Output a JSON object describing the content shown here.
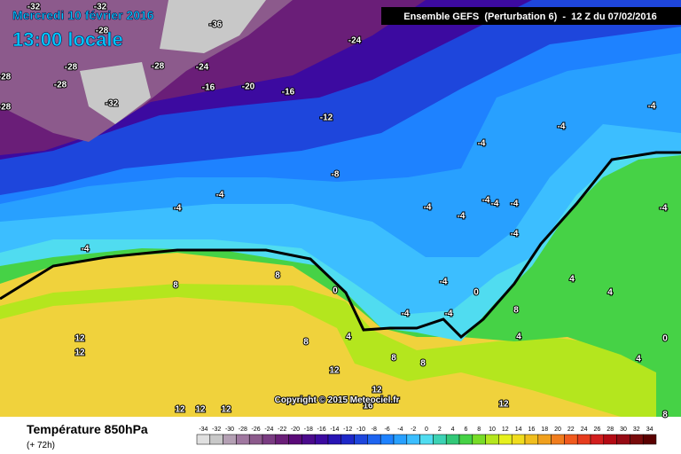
{
  "header": {
    "date": "Mercredi 10 février 2016",
    "time": "13:00 locale",
    "run": "Ensemble GEFS  (Perturbation 6)  -  12 Z du 07/02/2016"
  },
  "footer": {
    "title": "Température 850hPa",
    "lead": "(+ 72h)",
    "copyright": "Copyright © 2015 Meteociel.fr"
  },
  "contour_labels": [
    -32,
    -32,
    -36,
    -28,
    -24,
    -28,
    -28,
    -24,
    -16,
    -20,
    -16,
    -28,
    -32,
    -28,
    -28,
    -12,
    -8,
    -4,
    -4,
    -4,
    -4,
    -4,
    -4,
    -4,
    -4,
    -4,
    -4,
    -4,
    -4,
    -4,
    8,
    8,
    0,
    -4,
    -4,
    -4,
    0,
    4,
    4,
    8,
    12,
    12,
    8,
    4,
    4,
    8,
    8,
    12,
    0,
    4,
    12,
    12,
    12,
    12,
    12,
    16,
    8
  ],
  "scale": {
    "values": [
      -34,
      -32,
      -30,
      -28,
      -26,
      -24,
      -22,
      -20,
      -18,
      -16,
      -14,
      -12,
      -10,
      -8,
      -6,
      -4,
      -2,
      0,
      2,
      4,
      6,
      8,
      10,
      12,
      14,
      16,
      18,
      20,
      22,
      24,
      26,
      28,
      30,
      32,
      34
    ],
    "colors": [
      "#e0e0e0",
      "#c8c8c8",
      "#b4a0b4",
      "#a078a0",
      "#8c5a8c",
      "#7a3c82",
      "#6a1e78",
      "#5a0a78",
      "#4b0a8c",
      "#3c0aa0",
      "#2814b4",
      "#1e28c8",
      "#1e46dc",
      "#1e64f0",
      "#1e82ff",
      "#28a0ff",
      "#3cbeff",
      "#50dcf0",
      "#3cd2b4",
      "#32c878",
      "#46d246",
      "#78dc28",
      "#b4e61e",
      "#e6f01e",
      "#f0dc1e",
      "#f0be1e",
      "#f0a01e",
      "#f07d1e",
      "#f05a1e",
      "#e63c1e",
      "#d21e1e",
      "#b40a14",
      "#960a14",
      "#780a0a",
      "#5a0000"
    ]
  }
}
